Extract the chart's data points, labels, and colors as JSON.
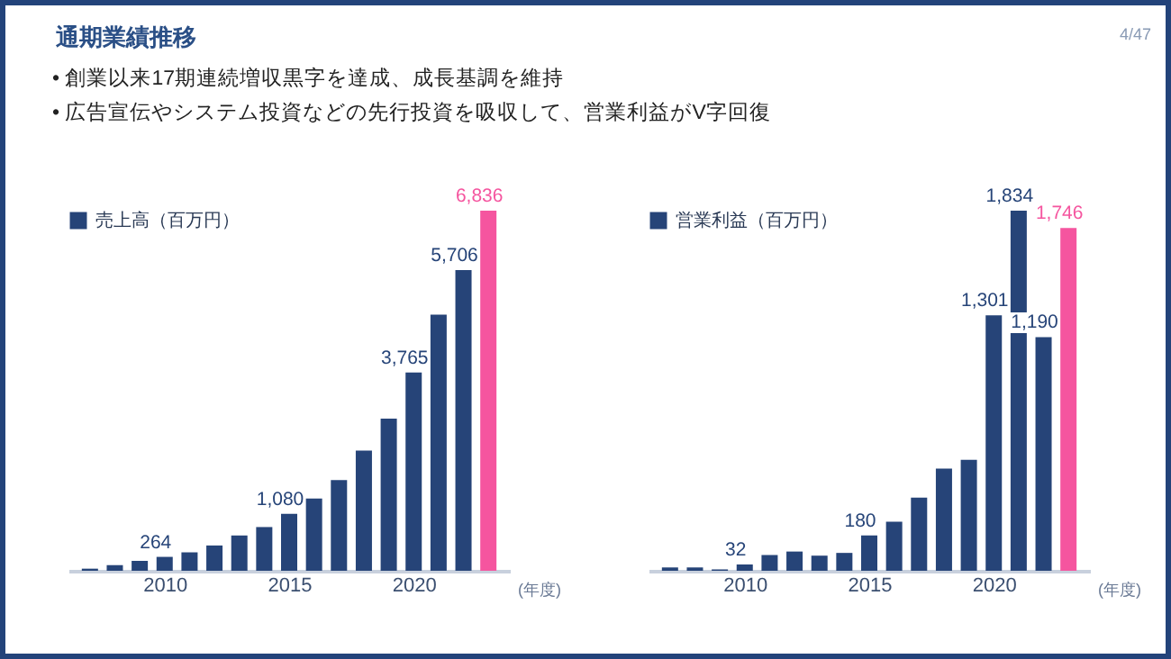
{
  "chart_data": [
    {
      "type": "other",
      "title": "通期業績推移",
      "annotations": [
        "• 創業以来17期連続増収黒字を達成、成長基調を維持",
        "• 広告宣伝やシステム投資などの先行投資を吸収して、営業利益がV字回復",
        "4/47"
      ]
    },
    {
      "type": "bar",
      "x": [
        2007,
        2008,
        2009,
        2010,
        2011,
        2012,
        2013,
        2014,
        2015,
        2016,
        2017,
        2018,
        2019,
        2020,
        2021,
        2022,
        2023
      ],
      "xlim": [
        2006.5,
        2023.5
      ],
      "xticks": [
        2010,
        2015,
        2020
      ],
      "xlabel": "(年度)",
      "legend": "top left",
      "series": [
        {
          "name": "売上高（百万円）",
          "color": "#264478",
          "colors": [
            "#264478",
            "#264478",
            "#264478",
            "#264478",
            "#264478",
            "#264478",
            "#264478",
            "#264478",
            "#264478",
            "#264478",
            "#264478",
            "#264478",
            "#264478",
            "#264478",
            "#264478",
            "#264478",
            "#f5559f"
          ],
          "values": [
            40,
            107,
            188,
            264,
            350,
            480,
            670,
            830,
            1080,
            1370,
            1720,
            2280,
            2890,
            3765,
            4860,
            5706,
            6836
          ],
          "value_labels": [
            null,
            null,
            null,
            "264",
            null,
            null,
            null,
            null,
            "1,080",
            null,
            null,
            null,
            null,
            "3,765",
            null,
            "5,706",
            "6,836"
          ]
        }
      ]
    },
    {
      "type": "bar",
      "x": [
        2007,
        2008,
        2009,
        2010,
        2011,
        2012,
        2013,
        2014,
        2015,
        2016,
        2017,
        2018,
        2019,
        2020,
        2021,
        2022,
        2023
      ],
      "xlim": [
        2006.5,
        2023.5
      ],
      "xticks": [
        2010,
        2015,
        2020
      ],
      "xlabel": "(年度)",
      "legend": "top left",
      "series": [
        {
          "name": "営業利益（百万円）",
          "color": "#264478",
          "colors": [
            "#264478",
            "#264478",
            "#264478",
            "#264478",
            "#264478",
            "#264478",
            "#264478",
            "#264478",
            "#264478",
            "#264478",
            "#264478",
            "#264478",
            "#264478",
            "#264478",
            "#264478",
            "#264478",
            "#f5559f"
          ],
          "values": [
            17,
            17,
            7,
            32,
            80,
            98,
            77,
            91,
            180,
            250,
            373,
            520,
            565,
            1301,
            1834,
            1190,
            1746
          ],
          "value_labels": [
            null,
            null,
            null,
            "32",
            null,
            null,
            null,
            null,
            "180",
            null,
            null,
            null,
            null,
            "1,301",
            "1,834",
            "1,190",
            "1,746"
          ]
        }
      ]
    }
  ]
}
